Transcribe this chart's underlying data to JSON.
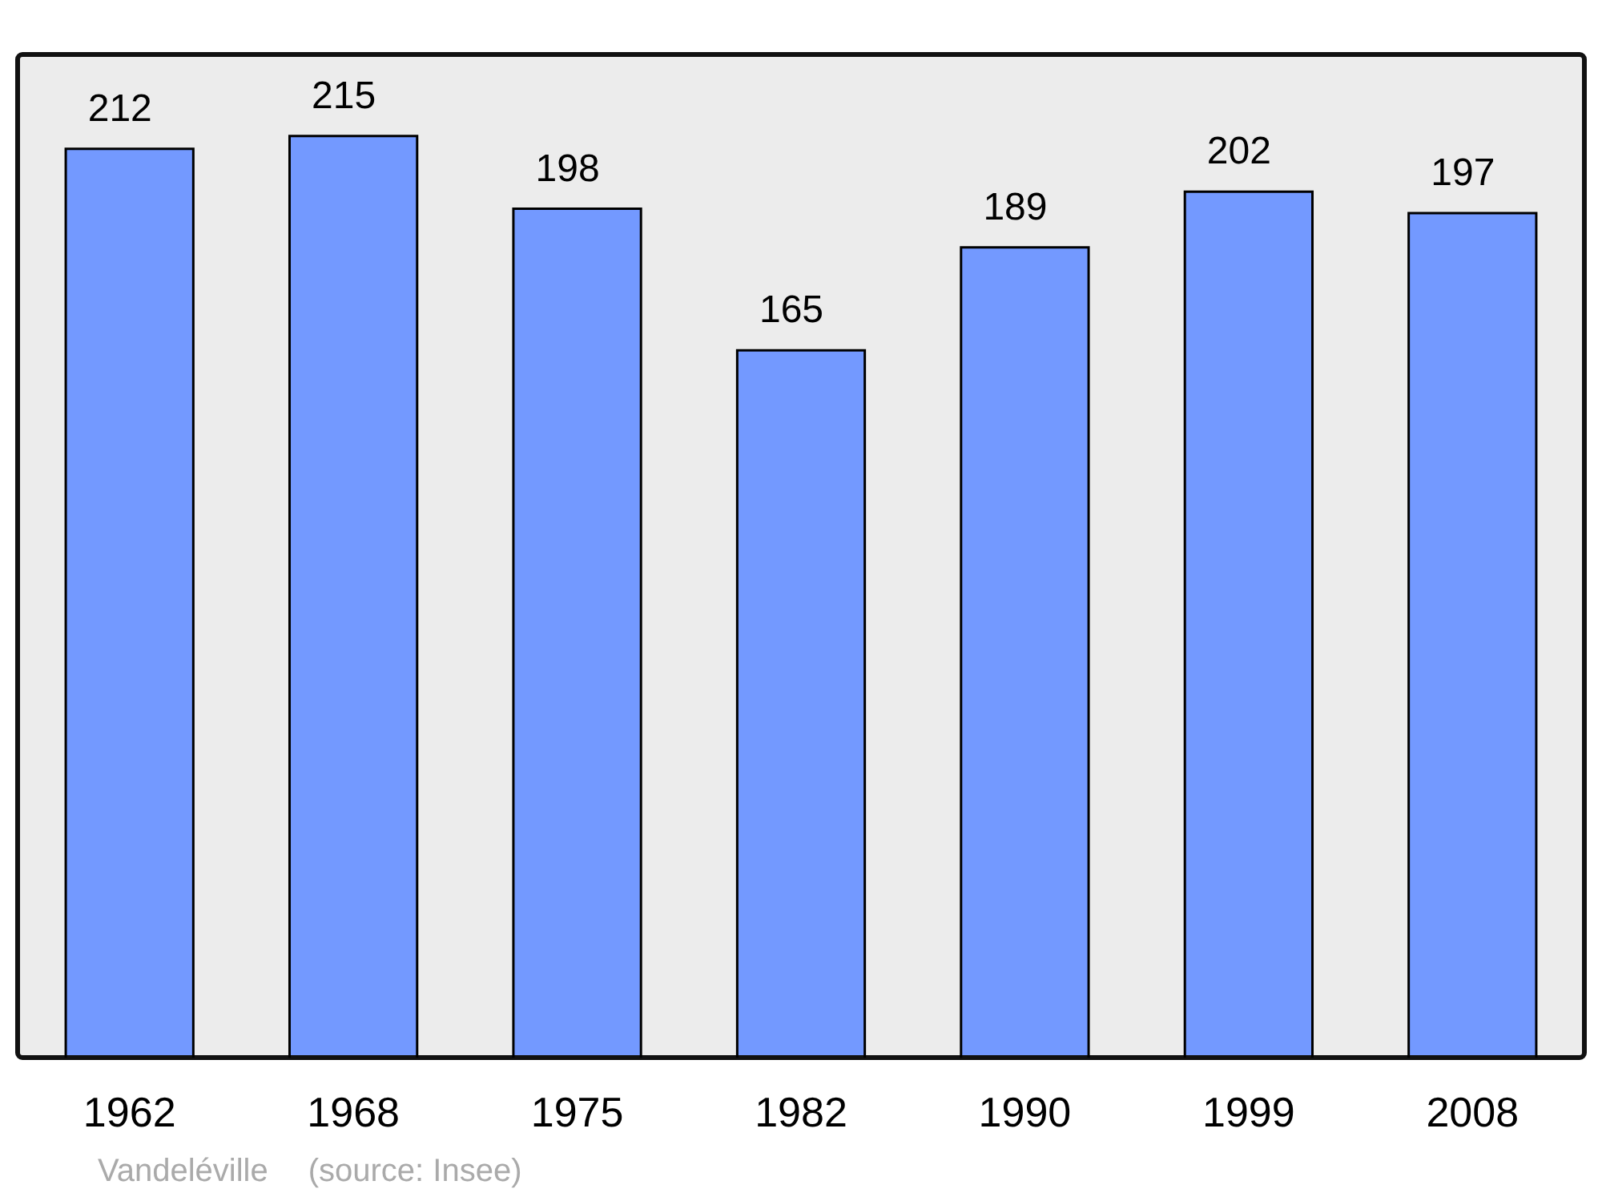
{
  "chart_data": {
    "type": "bar",
    "categories": [
      "1962",
      "1968",
      "1975",
      "1982",
      "1990",
      "1999",
      "2008"
    ],
    "values": [
      212,
      215,
      198,
      165,
      189,
      202,
      197
    ],
    "color": "#7399ff",
    "data_labels": true,
    "ylim": [
      0,
      234
    ],
    "legend": false,
    "annotations": [
      "Vandeléville",
      "(source: Insee)"
    ]
  }
}
